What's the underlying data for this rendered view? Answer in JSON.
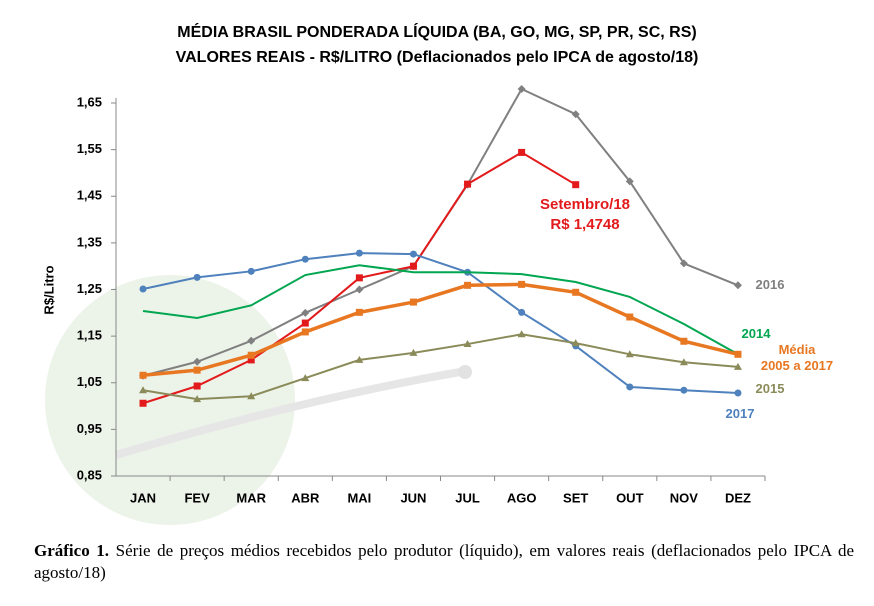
{
  "chart_data": {
    "type": "line",
    "title": "MÉDIA BRASIL PONDERADA LÍQUIDA (BA, GO, MG, SP, PR, SC, RS)",
    "subtitle": "VALORES REAIS - R$/LITRO (Deflacionados pelo IPCA de agosto/18)",
    "y_label": "R$/Litro",
    "categories": [
      "JAN",
      "FEV",
      "MAR",
      "ABR",
      "MAI",
      "JUN",
      "JUL",
      "AGO",
      "SET",
      "OUT",
      "NOV",
      "DEZ"
    ],
    "ylim": [
      0.85,
      1.65
    ],
    "yticks": [
      {
        "value": 0.85,
        "label": "0,85"
      },
      {
        "value": 0.95,
        "label": "0,95"
      },
      {
        "value": 1.05,
        "label": "1,05"
      },
      {
        "value": 1.15,
        "label": "1,15"
      },
      {
        "value": 1.25,
        "label": "1,25"
      },
      {
        "value": 1.35,
        "label": "1,35"
      },
      {
        "value": 1.45,
        "label": "1,45"
      },
      {
        "value": 1.55,
        "label": "1,55"
      },
      {
        "value": 1.65,
        "label": "1,65"
      }
    ],
    "series": [
      {
        "name": "2016",
        "color": "#808080",
        "marker": "diamond",
        "values": [
          1.065,
          1.095,
          1.14,
          1.2,
          1.25,
          1.3,
          1.475,
          1.68,
          1.626,
          1.482,
          1.306,
          1.259
        ]
      },
      {
        "color": "#e31a1c",
        "marker": "square",
        "values": [
          1.006,
          1.043,
          1.099,
          1.178,
          1.275,
          1.3,
          1.476,
          1.544,
          1.4748,
          null,
          null,
          null
        ]
      },
      {
        "name": "2017",
        "color": "#4f81bd",
        "marker": "circle",
        "values": [
          1.251,
          1.276,
          1.289,
          1.315,
          1.328,
          1.326,
          1.287,
          1.201,
          1.129,
          1.041,
          1.034,
          1.028
        ]
      },
      {
        "name": "2014",
        "color": "#00a650",
        "marker": "none",
        "values": [
          1.204,
          1.189,
          1.216,
          1.281,
          1.302,
          1.287,
          1.287,
          1.283,
          1.266,
          1.234,
          1.176,
          1.111
        ]
      },
      {
        "name": "Média\n2005 a 2017",
        "color": "#e87722",
        "marker": "square",
        "width": 3.5,
        "values": [
          1.066,
          1.077,
          1.109,
          1.159,
          1.201,
          1.223,
          1.259,
          1.261,
          1.244,
          1.191,
          1.139,
          1.111
        ]
      },
      {
        "name": "2015",
        "color": "#8b8b5a",
        "marker": "triangle",
        "values": [
          1.034,
          1.015,
          1.021,
          1.06,
          1.099,
          1.114,
          1.133,
          1.154,
          1.135,
          1.111,
          1.094,
          1.084
        ]
      }
    ],
    "annotations": [
      "Setembro/18",
      "R$ 1,4748"
    ]
  },
  "caption": {
    "label": "Gráfico 1.",
    "text": "Série de preços médios recebidos pelo produtor (líquido), em valores reais (deflacionados pelo IPCA de agosto/18)"
  }
}
